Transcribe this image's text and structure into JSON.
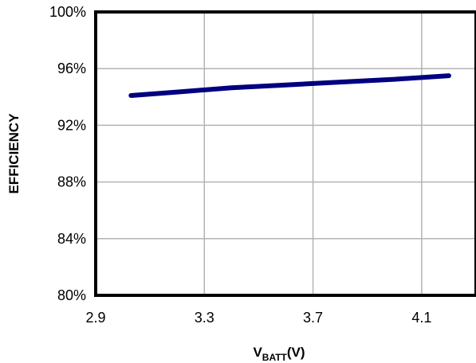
{
  "chart_data": {
    "type": "line",
    "xlabel": "V",
    "xlabel_sub": "BATT",
    "xlabel_suffix": "(V)",
    "ylabel": "EFFICIENCY",
    "xlim": [
      2.9,
      4.3
    ],
    "ylim": [
      80,
      100
    ],
    "x_ticks": [
      2.9,
      3.3,
      3.7,
      4.1
    ],
    "x_tick_labels": [
      "2.9",
      "3.3",
      "3.7",
      "4.1"
    ],
    "y_ticks": [
      80,
      84,
      88,
      92,
      96,
      100
    ],
    "y_tick_labels": [
      "80%",
      "84%",
      "88%",
      "92%",
      "96%",
      "100%"
    ],
    "grid": true,
    "series": [
      {
        "color": "#000080",
        "x": [
          3.03,
          3.2,
          3.4,
          3.6,
          3.8,
          4.0,
          4.2
        ],
        "y": [
          94.1,
          94.35,
          94.65,
          94.85,
          95.05,
          95.25,
          95.5
        ]
      }
    ]
  }
}
